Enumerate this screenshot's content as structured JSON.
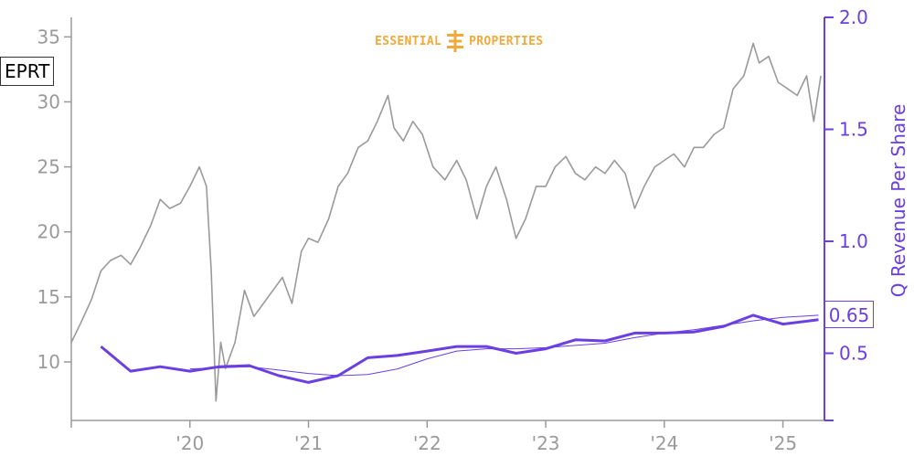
{
  "logo": {
    "left_text": "ESSENTIAL",
    "right_text": "PROPERTIES",
    "color": "#f2a93b",
    "icon": "essential-properties-logo-icon"
  },
  "ticker": "EPRT",
  "last_value_label": "0.65",
  "colors": {
    "price": "#9a9a9a",
    "revenue": "#6b3fe0",
    "axis_left": "#9a9a9a",
    "axis_right": "#6b3fe0"
  },
  "chart_data": {
    "type": "line",
    "title": "",
    "xlabel": "",
    "ylabel_left": "",
    "ylabel_right": "Q Revenue Per Share",
    "x_range": [
      2019.0,
      2025.35
    ],
    "y_left_range": [
      5.5,
      36.5
    ],
    "y_right_range": [
      0.2,
      2.0
    ],
    "x_ticks": [
      {
        "x": 2020,
        "label": "'20"
      },
      {
        "x": 2021,
        "label": "'21"
      },
      {
        "x": 2022,
        "label": "'22"
      },
      {
        "x": 2023,
        "label": "'23"
      },
      {
        "x": 2024,
        "label": "'24"
      },
      {
        "x": 2025,
        "label": "'25"
      }
    ],
    "y_left_ticks": [
      10,
      15,
      20,
      25,
      30,
      35
    ],
    "y_right_ticks": [
      0.5,
      1.0,
      1.5,
      2.0
    ],
    "grid": false,
    "series": [
      {
        "name": "EPRT",
        "axis": "left",
        "points": [
          [
            2019.0,
            11.5
          ],
          [
            2019.08,
            13.0
          ],
          [
            2019.17,
            14.8
          ],
          [
            2019.25,
            17.0
          ],
          [
            2019.33,
            17.8
          ],
          [
            2019.42,
            18.2
          ],
          [
            2019.5,
            17.5
          ],
          [
            2019.58,
            18.8
          ],
          [
            2019.67,
            20.5
          ],
          [
            2019.75,
            22.5
          ],
          [
            2019.83,
            21.8
          ],
          [
            2019.92,
            22.2
          ],
          [
            2020.0,
            23.5
          ],
          [
            2020.08,
            25.0
          ],
          [
            2020.14,
            23.5
          ],
          [
            2020.18,
            17.0
          ],
          [
            2020.22,
            7.0
          ],
          [
            2020.26,
            11.5
          ],
          [
            2020.3,
            9.5
          ],
          [
            2020.38,
            11.5
          ],
          [
            2020.46,
            15.5
          ],
          [
            2020.54,
            13.5
          ],
          [
            2020.62,
            14.5
          ],
          [
            2020.7,
            15.5
          ],
          [
            2020.78,
            16.5
          ],
          [
            2020.86,
            14.5
          ],
          [
            2020.94,
            18.5
          ],
          [
            2021.0,
            19.5
          ],
          [
            2021.08,
            19.2
          ],
          [
            2021.17,
            21.0
          ],
          [
            2021.25,
            23.5
          ],
          [
            2021.33,
            24.5
          ],
          [
            2021.42,
            26.5
          ],
          [
            2021.5,
            27.0
          ],
          [
            2021.58,
            28.5
          ],
          [
            2021.67,
            30.5
          ],
          [
            2021.72,
            28.0
          ],
          [
            2021.8,
            27.0
          ],
          [
            2021.88,
            28.5
          ],
          [
            2021.96,
            27.5
          ],
          [
            2022.05,
            25.0
          ],
          [
            2022.15,
            24.0
          ],
          [
            2022.25,
            25.5
          ],
          [
            2022.33,
            24.0
          ],
          [
            2022.42,
            21.0
          ],
          [
            2022.5,
            23.5
          ],
          [
            2022.58,
            25.0
          ],
          [
            2022.67,
            22.5
          ],
          [
            2022.75,
            19.5
          ],
          [
            2022.83,
            21.0
          ],
          [
            2022.92,
            23.5
          ],
          [
            2023.0,
            23.5
          ],
          [
            2023.08,
            25.0
          ],
          [
            2023.17,
            25.8
          ],
          [
            2023.25,
            24.5
          ],
          [
            2023.33,
            24.0
          ],
          [
            2023.42,
            25.0
          ],
          [
            2023.5,
            24.5
          ],
          [
            2023.58,
            25.5
          ],
          [
            2023.67,
            24.5
          ],
          [
            2023.75,
            21.8
          ],
          [
            2023.83,
            23.5
          ],
          [
            2023.92,
            25.0
          ],
          [
            2024.0,
            25.5
          ],
          [
            2024.08,
            26.0
          ],
          [
            2024.17,
            25.0
          ],
          [
            2024.25,
            26.5
          ],
          [
            2024.33,
            26.5
          ],
          [
            2024.42,
            27.5
          ],
          [
            2024.5,
            28.0
          ],
          [
            2024.58,
            31.0
          ],
          [
            2024.67,
            32.0
          ],
          [
            2024.75,
            34.5
          ],
          [
            2024.8,
            33.0
          ],
          [
            2024.88,
            33.5
          ],
          [
            2024.96,
            31.5
          ],
          [
            2025.04,
            31.0
          ],
          [
            2025.12,
            30.5
          ],
          [
            2025.2,
            32.0
          ],
          [
            2025.26,
            28.5
          ],
          [
            2025.32,
            32.0
          ]
        ]
      },
      {
        "name": "Q Revenue Per Share",
        "axis": "right",
        "points": [
          [
            2019.25,
            0.53
          ],
          [
            2019.5,
            0.42
          ],
          [
            2019.75,
            0.44
          ],
          [
            2020.0,
            0.42
          ],
          [
            2020.25,
            0.44
          ],
          [
            2020.5,
            0.445
          ],
          [
            2020.75,
            0.4
          ],
          [
            2021.0,
            0.37
          ],
          [
            2021.25,
            0.4
          ],
          [
            2021.5,
            0.48
          ],
          [
            2021.75,
            0.49
          ],
          [
            2022.0,
            0.51
          ],
          [
            2022.25,
            0.53
          ],
          [
            2022.5,
            0.53
          ],
          [
            2022.75,
            0.5
          ],
          [
            2023.0,
            0.52
          ],
          [
            2023.25,
            0.56
          ],
          [
            2023.5,
            0.555
          ],
          [
            2023.75,
            0.59
          ],
          [
            2024.0,
            0.59
          ],
          [
            2024.25,
            0.595
          ],
          [
            2024.5,
            0.62
          ],
          [
            2024.75,
            0.67
          ],
          [
            2025.0,
            0.63
          ],
          [
            2025.3,
            0.65
          ]
        ]
      },
      {
        "name": "",
        "axis": "right",
        "points": [
          [
            2020.0,
            0.43
          ],
          [
            2020.25,
            0.435
          ],
          [
            2020.5,
            0.44
          ],
          [
            2020.75,
            0.425
          ],
          [
            2021.0,
            0.41
          ],
          [
            2021.25,
            0.4
          ],
          [
            2021.5,
            0.405
          ],
          [
            2021.75,
            0.43
          ],
          [
            2022.0,
            0.475
          ],
          [
            2022.25,
            0.51
          ],
          [
            2022.5,
            0.52
          ],
          [
            2022.75,
            0.52
          ],
          [
            2023.0,
            0.525
          ],
          [
            2023.25,
            0.535
          ],
          [
            2023.5,
            0.545
          ],
          [
            2023.75,
            0.57
          ],
          [
            2024.0,
            0.59
          ],
          [
            2024.25,
            0.605
          ],
          [
            2024.5,
            0.625
          ],
          [
            2024.75,
            0.645
          ],
          [
            2025.0,
            0.66
          ],
          [
            2025.3,
            0.67
          ]
        ]
      }
    ]
  }
}
